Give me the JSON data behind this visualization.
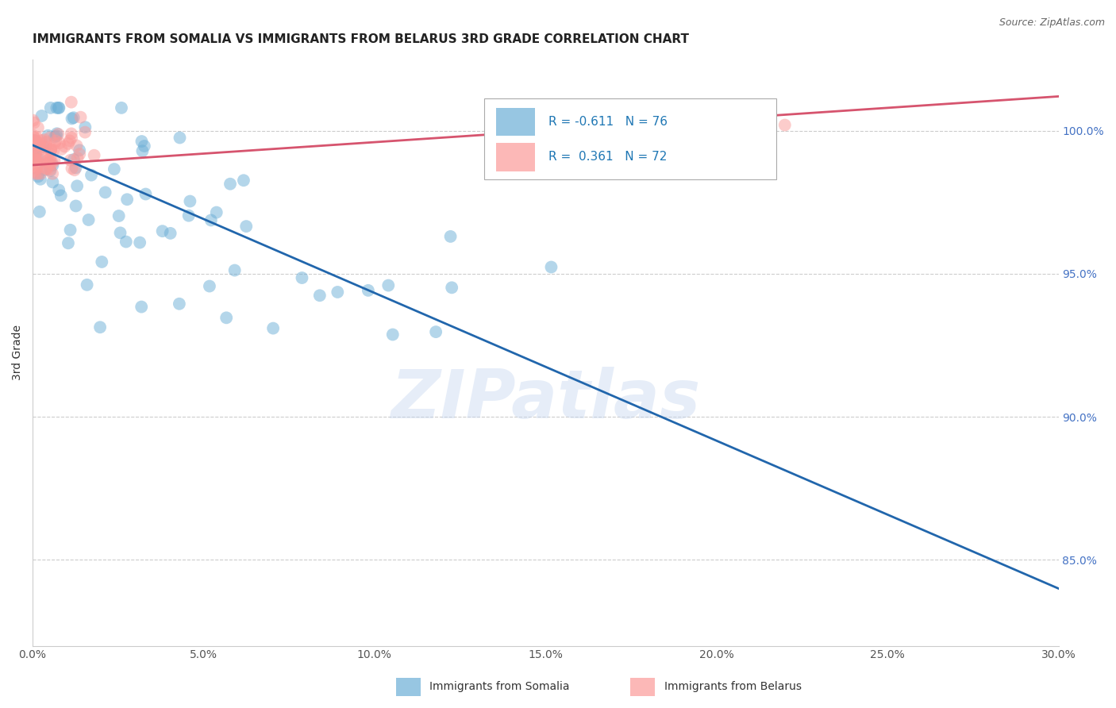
{
  "title": "IMMIGRANTS FROM SOMALIA VS IMMIGRANTS FROM BELARUS 3RD GRADE CORRELATION CHART",
  "source": "Source: ZipAtlas.com",
  "ylabel": "3rd Grade",
  "x_min": 0.0,
  "x_max": 30.0,
  "y_min": 82.0,
  "y_max": 102.5,
  "somalia_color": "#6baed6",
  "belarus_color": "#fb9a99",
  "somalia_line_color": "#2166ac",
  "belarus_line_color": "#d6546e",
  "somalia_R": -0.611,
  "somalia_N": 76,
  "belarus_R": 0.361,
  "belarus_N": 72,
  "legend_text_color": "#1f77b4",
  "watermark": "ZIPatlas",
  "background_color": "#ffffff",
  "grid_color": "#cccccc",
  "y_ticks": [
    85.0,
    90.0,
    95.0,
    100.0
  ],
  "x_ticks": [
    0,
    5,
    10,
    15,
    20,
    25,
    30
  ]
}
